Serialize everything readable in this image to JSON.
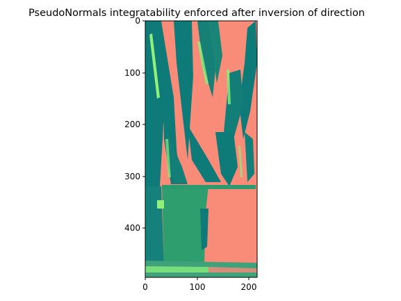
{
  "figure": {
    "title": "PseudoNormals integratability enforced after inversion of direction",
    "image_description_icon": "plant-normal-map-image",
    "colors": {
      "salmon": "#f98b79",
      "teal": "#0f7b78",
      "green": "#2f9e6e",
      "light_green": "#8ff07c",
      "axis": "#000000"
    }
  },
  "chart_data": {
    "type": "heatmap",
    "title": "PseudoNormals integratability enforced after inversion of direction",
    "xlabel": "",
    "ylabel": "",
    "xlim": [
      0,
      215
    ],
    "ylim": [
      500,
      0
    ],
    "x_ticks": [
      0,
      100,
      200
    ],
    "y_ticks": [
      0,
      100,
      200,
      300,
      400
    ],
    "x_tick_labels": [
      "0",
      "100",
      "200"
    ],
    "y_tick_labels": [
      "0",
      "100",
      "200",
      "300",
      "400"
    ]
  }
}
